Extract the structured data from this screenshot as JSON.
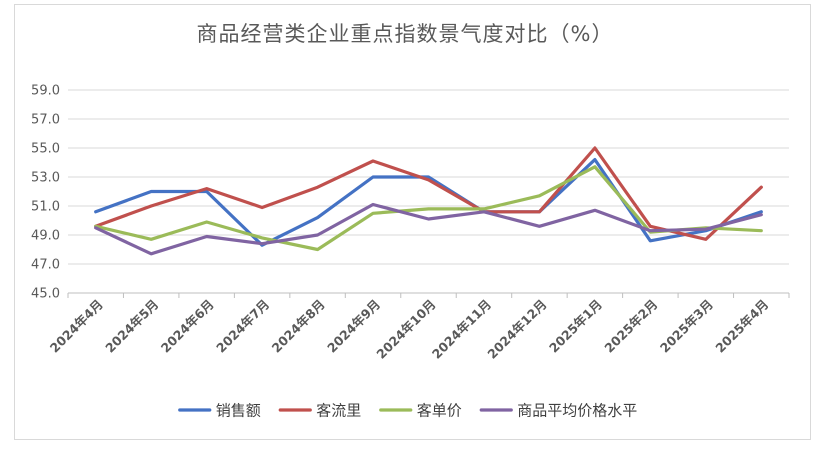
{
  "chart_data": {
    "type": "line",
    "title": "商品经营类企业重点指数景气度对比（%）",
    "categories": [
      "2024年4月",
      "2024年5月",
      "2024年6月",
      "2024年7月",
      "2024年8月",
      "2024年9月",
      "2024年10月",
      "2024年11月",
      "2024年12月",
      "2025年1月",
      "2025年2月",
      "2025年3月",
      "2025年4月"
    ],
    "ylim": [
      45.0,
      59.0
    ],
    "yticks": [
      "45.0",
      "47.0",
      "49.0",
      "51.0",
      "53.0",
      "55.0",
      "57.0",
      "59.0"
    ],
    "grid": true,
    "legend_position": "bottom",
    "series": [
      {
        "name": "销售额",
        "color": "#4472c4",
        "values": [
          50.6,
          52.0,
          52.0,
          48.3,
          50.2,
          53.0,
          53.0,
          50.6,
          50.6,
          54.2,
          48.6,
          49.3,
          50.6
        ]
      },
      {
        "name": "客流里",
        "color": "#c0504d",
        "values": [
          49.6,
          51.0,
          52.2,
          50.9,
          52.3,
          54.1,
          52.8,
          50.6,
          50.6,
          55.0,
          49.6,
          48.7,
          52.3
        ]
      },
      {
        "name": "客单价",
        "color": "#9bbb59",
        "values": [
          49.6,
          48.7,
          49.9,
          48.8,
          48.0,
          50.5,
          50.8,
          50.8,
          51.7,
          53.7,
          49.2,
          49.5,
          49.3
        ]
      },
      {
        "name": "商品平均价格水平",
        "color": "#8064a2",
        "values": [
          49.5,
          47.7,
          48.9,
          48.4,
          49.0,
          51.1,
          50.1,
          50.6,
          49.6,
          50.7,
          49.3,
          49.4,
          50.4
        ]
      }
    ]
  }
}
